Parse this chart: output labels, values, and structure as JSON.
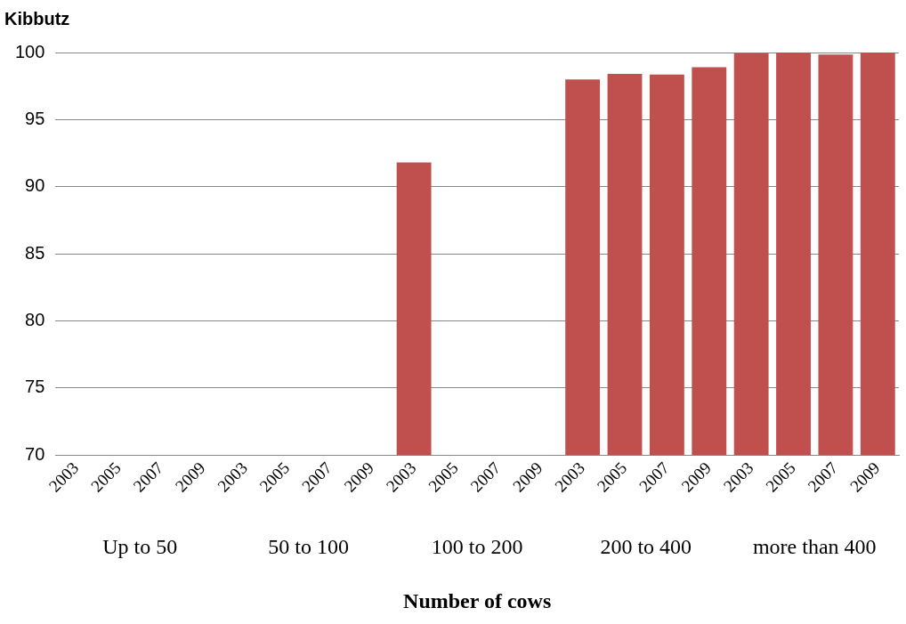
{
  "chart_data": {
    "type": "bar",
    "title": "Kibbutz",
    "xlabel": "Number of cows",
    "categories": [
      "2003",
      "2005",
      "2007",
      "2009",
      "2003",
      "2005",
      "2007",
      "2009",
      "2003",
      "2005",
      "2007",
      "2009",
      "2003",
      "2005",
      "2007",
      "2009",
      "2003",
      "2005",
      "2007",
      "2009"
    ],
    "values": [
      null,
      null,
      null,
      null,
      null,
      null,
      null,
      null,
      91.8,
      null,
      null,
      null,
      98.0,
      98.4,
      98.35,
      98.9,
      99.95,
      100,
      99.85,
      100
    ],
    "color": "#c0504d",
    "ylim": [
      70,
      100
    ],
    "yticks": [
      70,
      75,
      80,
      85,
      90,
      95,
      100
    ],
    "grid": "y",
    "legend": false,
    "annotations": [
      "Up to 50",
      "50 to 100",
      "100 to 200",
      "200 to 400",
      "more than 400"
    ]
  }
}
